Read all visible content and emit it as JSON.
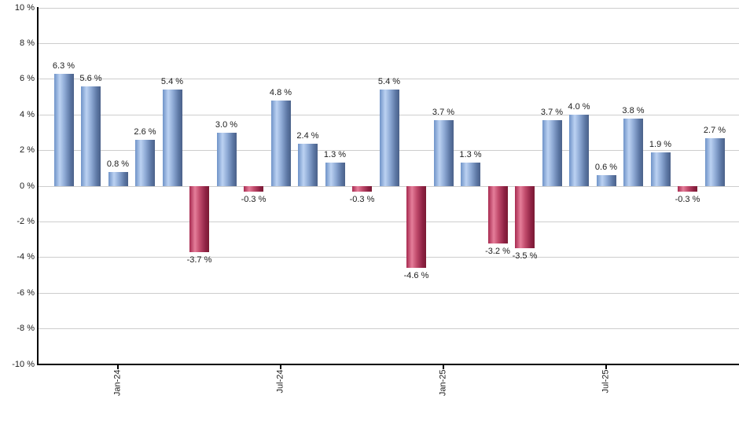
{
  "chart_data": {
    "type": "bar",
    "title": "",
    "xlabel": "",
    "ylabel": "",
    "values": [
      6.3,
      5.6,
      0.8,
      2.6,
      5.4,
      -3.7,
      3.0,
      -0.3,
      4.8,
      2.4,
      1.3,
      -0.3,
      5.4,
      -4.6,
      3.7,
      1.3,
      -3.2,
      -3.5,
      3.7,
      4.0,
      0.6,
      3.8,
      1.9,
      -0.3,
      2.7
    ],
    "bar_labels": [
      "6.3 %",
      "5.6 %",
      "0.8 %",
      "2.6 %",
      "5.4 %",
      "-3.7 %",
      "3.0 %",
      "-0.3 %",
      "4.8 %",
      "2.4 %",
      "1.3 %",
      "-0.3 %",
      "5.4 %",
      "-4.6 %",
      "3.7 %",
      "1.3 %",
      "-3.2 %",
      "-3.5 %",
      "3.7 %",
      "4.0 %",
      "0.6 %",
      "3.8 %",
      "1.9 %",
      "-0.3 %",
      "2.7 %"
    ],
    "x_ticks": [
      {
        "label": "Jan-24",
        "bar_index": 2
      },
      {
        "label": "Jul-24",
        "bar_index": 8
      },
      {
        "label": "Jan-25",
        "bar_index": 14
      },
      {
        "label": "Jul-25",
        "bar_index": 20
      }
    ],
    "y_ticks": [
      {
        "value": 10,
        "label": "10 %"
      },
      {
        "value": 8,
        "label": "8 %"
      },
      {
        "value": 6,
        "label": "6 %"
      },
      {
        "value": 4,
        "label": "4 %"
      },
      {
        "value": 2,
        "label": "2 %"
      },
      {
        "value": 0,
        "label": "0 %"
      },
      {
        "value": -2,
        "label": "-2 %"
      },
      {
        "value": -4,
        "label": "-4 %"
      },
      {
        "value": -6,
        "label": "-6 %"
      },
      {
        "value": -8,
        "label": "-8 %"
      },
      {
        "value": -10,
        "label": "-10 %"
      }
    ],
    "ylim": [
      -10,
      10
    ],
    "grid": true,
    "legend": false,
    "colors": {
      "positive_bar_light": "#bcd2f2",
      "positive_bar_dark": "#4b6189",
      "negative_bar_light": "#e57e9a",
      "negative_bar_dark": "#7a1a33",
      "gridline": "#cdcdcd",
      "axis": "#000000",
      "text": "#1c1c1c",
      "background": "#ffffff"
    }
  }
}
